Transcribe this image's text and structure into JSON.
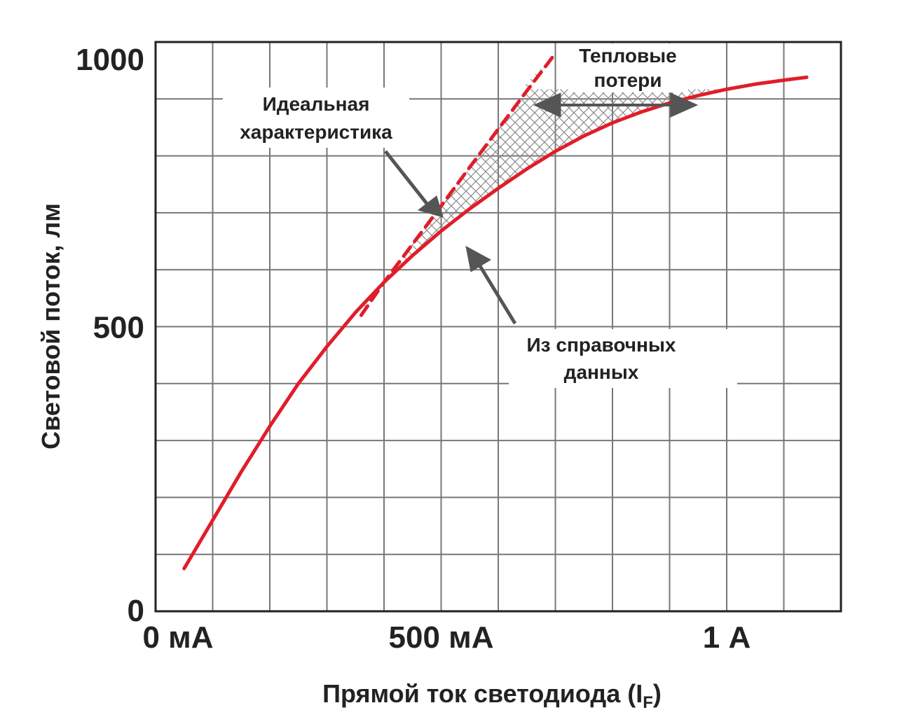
{
  "chart_data": {
    "type": "line",
    "xlabel": "Прямой ток светодиода (I",
    "xlabel_sub": "F",
    "xlabel_close": ")",
    "ylabel": "Световой поток, лм",
    "xlim": [
      0,
      1200
    ],
    "ylim": [
      0,
      1000
    ],
    "x_ticks": [
      {
        "value": 0,
        "label": "0 мА"
      },
      {
        "value": 500,
        "label": "500 мА"
      },
      {
        "value": 1000,
        "label": "1 А"
      }
    ],
    "y_ticks": [
      {
        "value": 0,
        "label": "0"
      },
      {
        "value": 500,
        "label": "500"
      },
      {
        "value": 1000,
        "label": "1000"
      }
    ],
    "grid": true,
    "grid_step_x": 100,
    "grid_step_y": 100,
    "series": [
      {
        "name": "Из справочных данных",
        "color": "#e11d2a",
        "style": "solid",
        "x": [
          50,
          100,
          150,
          200,
          250,
          300,
          350,
          400,
          450,
          500,
          550,
          600,
          650,
          700,
          750,
          800,
          850,
          900,
          950,
          1000,
          1050,
          1100,
          1140
        ],
        "y": [
          75,
          160,
          245,
          325,
          400,
          465,
          525,
          578,
          625,
          668,
          707,
          743,
          777,
          808,
          835,
          858,
          877,
          893,
          906,
          917,
          926,
          933,
          938
        ]
      },
      {
        "name": "Идеальная характеристика",
        "color": "#e11d2a",
        "style": "dashed",
        "x": [
          360,
          400,
          450,
          500,
          550,
          600,
          650,
          700
        ],
        "y": [
          520,
          578,
          645,
          712,
          780,
          847,
          914,
          980
        ]
      }
    ],
    "annotations": {
      "ideal": [
        "Идеальная",
        "характеристика"
      ],
      "datasheet": [
        "Из справочных",
        "данных"
      ],
      "thermal": [
        "Тепловые",
        "потери"
      ]
    }
  }
}
